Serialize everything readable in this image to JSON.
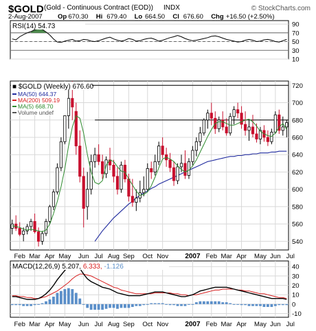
{
  "header": {
    "symbol": "$GOLD",
    "description": "(Gold - Continuous Contract (EOD))",
    "exchange": "INDX",
    "brand": "© StockCharts.com",
    "date": "2-Aug-2007",
    "quote": [
      {
        "label": "Op",
        "value": "670.30"
      },
      {
        "label": "Hi",
        "value": "679.40"
      },
      {
        "label": "Lo",
        "value": "664.50"
      },
      {
        "label": "Cl",
        "value": "676.60"
      },
      {
        "label": "Chg",
        "value": "+16.50 (+2.50%)"
      }
    ]
  },
  "colors": {
    "up": "#000000",
    "down": "#c8102e",
    "ma50": "#1f2a9e",
    "ma200": "#d81e1e",
    "ma5": "#2e8b2e",
    "rsi_fill": "#4e8a4e",
    "macd_hist": "#5b8fc9"
  },
  "chart_data": [
    {
      "type": "line",
      "panel": "rsi",
      "legend": {
        "name": "RSI(14)",
        "value": "54.73"
      },
      "ylim": [
        10,
        98
      ],
      "yticks": [
        10,
        30,
        50,
        70,
        90
      ],
      "reference_lines": [
        30,
        50,
        70
      ],
      "series": [
        {
          "name": "RSI(14)",
          "values": [
            56,
            54,
            61,
            66,
            70,
            73,
            77,
            79,
            78,
            72,
            65,
            56,
            49,
            48,
            51,
            53,
            55,
            51,
            52,
            55,
            54,
            51,
            50,
            52,
            55,
            58,
            60,
            56,
            53,
            51,
            53,
            57,
            55,
            51,
            52,
            55,
            57,
            58,
            55,
            51,
            53,
            56,
            59,
            61,
            64,
            61,
            57,
            54,
            52,
            53,
            55,
            57,
            59,
            62,
            63,
            61,
            58,
            55,
            53,
            51,
            49,
            50,
            53,
            55,
            53,
            50,
            51,
            54,
            55,
            53,
            50,
            49,
            52,
            55
          ]
        }
      ]
    },
    {
      "type": "candlestick",
      "panel": "price",
      "title": "$GOLD (Weekly) 676.60",
      "legend": [
        {
          "name": "MA(50)",
          "value": "644.37"
        },
        {
          "name": "MA(200)",
          "value": "509.19"
        },
        {
          "name": "MA(5)",
          "value": "668.70"
        },
        {
          "name": "Volume undef",
          "value": ""
        }
      ],
      "ylim": [
        530,
        725
      ],
      "yticks": [
        540,
        560,
        580,
        600,
        620,
        640,
        660,
        680,
        700,
        720
      ],
      "reference_lines": [
        720,
        680
      ],
      "x_labels": [
        {
          "label": "Feb",
          "i": 2
        },
        {
          "label": "Mar",
          "i": 6
        },
        {
          "label": "Apr",
          "i": 10
        },
        {
          "label": "May",
          "i": 14
        },
        {
          "label": "Jun",
          "i": 19
        },
        {
          "label": "Jul",
          "i": 23
        },
        {
          "label": "Aug",
          "i": 27
        },
        {
          "label": "Sep",
          "i": 31
        },
        {
          "label": "Oct",
          "i": 36
        },
        {
          "label": "Nov",
          "i": 40
        },
        {
          "label": "2007",
          "i": 48,
          "bold": true
        },
        {
          "label": "Feb",
          "i": 53
        },
        {
          "label": "Mar",
          "i": 57
        },
        {
          "label": "Apr",
          "i": 61
        },
        {
          "label": "May",
          "i": 66
        },
        {
          "label": "Jun",
          "i": 70
        },
        {
          "label": "Jul",
          "i": 74
        }
      ],
      "ohlc": [
        [
          555,
          565,
          548,
          560
        ],
        [
          560,
          570,
          552,
          555
        ],
        [
          555,
          562,
          546,
          548
        ],
        [
          548,
          556,
          540,
          552
        ],
        [
          552,
          560,
          548,
          557
        ],
        [
          557,
          566,
          552,
          563
        ],
        [
          563,
          572,
          549,
          551
        ],
        [
          551,
          556,
          534,
          540
        ],
        [
          540,
          552,
          536,
          549
        ],
        [
          549,
          566,
          546,
          563
        ],
        [
          563,
          582,
          560,
          580
        ],
        [
          580,
          600,
          576,
          597
        ],
        [
          597,
          630,
          594,
          625
        ],
        [
          625,
          660,
          621,
          655
        ],
        [
          655,
          690,
          652,
          685
        ],
        [
          685,
          720,
          670,
          705
        ],
        [
          705,
          725,
          680,
          695
        ],
        [
          690,
          700,
          640,
          650
        ],
        [
          650,
          668,
          608,
          615
        ],
        [
          615,
          625,
          556,
          578
        ],
        [
          580,
          620,
          565,
          600
        ],
        [
          600,
          640,
          594,
          632
        ],
        [
          632,
          648,
          625,
          640
        ],
        [
          640,
          652,
          628,
          632
        ],
        [
          632,
          640,
          612,
          618
        ],
        [
          618,
          638,
          613,
          634
        ],
        [
          634,
          648,
          622,
          628
        ],
        [
          628,
          634,
          608,
          615
        ],
        [
          615,
          625,
          594,
          600
        ],
        [
          600,
          632,
          596,
          628
        ],
        [
          628,
          634,
          608,
          612
        ],
        [
          612,
          618,
          586,
          592
        ],
        [
          592,
          612,
          580,
          585
        ],
        [
          585,
          600,
          575,
          590
        ],
        [
          590,
          610,
          585,
          596
        ],
        [
          596,
          615,
          592,
          600
        ],
        [
          600,
          630,
          598,
          624
        ],
        [
          624,
          632,
          612,
          620
        ],
        [
          620,
          640,
          616,
          632
        ],
        [
          632,
          655,
          628,
          650
        ],
        [
          650,
          660,
          636,
          640
        ],
        [
          640,
          648,
          626,
          634
        ],
        [
          634,
          642,
          620,
          625
        ],
        [
          625,
          632,
          604,
          610
        ],
        [
          610,
          630,
          606,
          626
        ],
        [
          626,
          640,
          620,
          630
        ],
        [
          630,
          645,
          612,
          616
        ],
        [
          616,
          636,
          612,
          632
        ],
        [
          632,
          650,
          628,
          645
        ],
        [
          645,
          660,
          638,
          655
        ],
        [
          655,
          672,
          650,
          665
        ],
        [
          665,
          682,
          662,
          680
        ],
        [
          680,
          692,
          670,
          688
        ],
        [
          688,
          700,
          674,
          682
        ],
        [
          682,
          690,
          664,
          670
        ],
        [
          670,
          684,
          666,
          680
        ],
        [
          680,
          690,
          668,
          672
        ],
        [
          672,
          682,
          662,
          665
        ],
        [
          665,
          688,
          662,
          684
        ],
        [
          684,
          696,
          675,
          692
        ],
        [
          692,
          700,
          682,
          688
        ],
        [
          688,
          696,
          670,
          675
        ],
        [
          675,
          690,
          662,
          668
        ],
        [
          668,
          680,
          656,
          672
        ],
        [
          672,
          686,
          660,
          664
        ],
        [
          664,
          676,
          654,
          658
        ],
        [
          658,
          672,
          652,
          668
        ],
        [
          668,
          674,
          655,
          660
        ],
        [
          660,
          668,
          650,
          655
        ],
        [
          655,
          670,
          652,
          666
        ],
        [
          666,
          690,
          664,
          686
        ],
        [
          686,
          692,
          664,
          668
        ],
        [
          668,
          684,
          662,
          672
        ],
        [
          672,
          680,
          660,
          677
        ]
      ],
      "ma50": [
        null,
        null,
        null,
        null,
        null,
        null,
        null,
        null,
        null,
        null,
        null,
        null,
        null,
        null,
        null,
        null,
        null,
        null,
        null,
        null,
        null,
        null,
        540,
        546,
        552,
        557,
        562,
        567,
        571,
        575,
        579,
        583,
        586,
        590,
        593,
        596,
        598,
        601,
        603,
        606,
        608,
        610,
        612,
        614,
        616,
        618,
        620,
        622,
        624,
        626,
        628,
        630,
        632,
        633,
        634,
        635,
        636,
        637,
        638,
        638,
        639,
        639,
        640,
        640,
        641,
        641,
        642,
        642,
        642,
        643,
        643,
        644,
        644,
        644
      ],
      "ma5": [
        558,
        557,
        556,
        554,
        553,
        554,
        553,
        552,
        551,
        553,
        560,
        572,
        586,
        603,
        624,
        650,
        672,
        685,
        682,
        665,
        640,
        620,
        608,
        606,
        610,
        628,
        634,
        632,
        626,
        621,
        620,
        612,
        605,
        598,
        593,
        594,
        597,
        604,
        614,
        625,
        635,
        637,
        635,
        632,
        627,
        623,
        620,
        622,
        627,
        634,
        643,
        652,
        661,
        669,
        676,
        678,
        678,
        676,
        674,
        674,
        676,
        678,
        680,
        681,
        678,
        673,
        667,
        664,
        662,
        661,
        665,
        672,
        676,
        669
      ]
    },
    {
      "type": "line",
      "panel": "macd",
      "legend": {
        "name": "MACD(12,26,9)",
        "values": [
          "5.207",
          "6.333",
          "-1.126"
        ]
      },
      "ylim": [
        -14,
        46
      ],
      "yticks": [
        -10,
        0,
        10,
        20,
        30,
        40
      ],
      "x_labels": [
        {
          "label": "Feb",
          "i": 2
        },
        {
          "label": "Mar",
          "i": 6
        },
        {
          "label": "Apr",
          "i": 10
        },
        {
          "label": "May",
          "i": 14
        },
        {
          "label": "Jun",
          "i": 19
        },
        {
          "label": "Jul",
          "i": 23
        },
        {
          "label": "Aug",
          "i": 27
        },
        {
          "label": "Sep",
          "i": 31
        },
        {
          "label": "Oct",
          "i": 36
        },
        {
          "label": "Nov",
          "i": 40
        },
        {
          "label": "2007",
          "i": 48,
          "bold": true
        },
        {
          "label": "Feb",
          "i": 53
        },
        {
          "label": "Mar",
          "i": 57
        },
        {
          "label": "Apr",
          "i": 61
        },
        {
          "label": "May",
          "i": 66
        },
        {
          "label": "Jun",
          "i": 70
        },
        {
          "label": "Jul",
          "i": 74
        }
      ],
      "macd": [
        8,
        8,
        7,
        6,
        5,
        5,
        5,
        6,
        8,
        11,
        15,
        20,
        26,
        31,
        36,
        40,
        43,
        42,
        38,
        32,
        27,
        24,
        22,
        20,
        18,
        17,
        16,
        14,
        12,
        11,
        10,
        9,
        9,
        9,
        9,
        10,
        11,
        12,
        13,
        13,
        13,
        12,
        11,
        10,
        9,
        8,
        8,
        9,
        10,
        12,
        14,
        15,
        16,
        17,
        18,
        18,
        18,
        18,
        17,
        16,
        15,
        14,
        13,
        12,
        11,
        10,
        9,
        8,
        7,
        6,
        6,
        6,
        6,
        5
      ],
      "signal": [
        9,
        9,
        8,
        8,
        7,
        7,
        6,
        6,
        7,
        8,
        10,
        12,
        14,
        17,
        20,
        23,
        27,
        30,
        32,
        32,
        31,
        30,
        28,
        26,
        24,
        22,
        20,
        18,
        17,
        15,
        14,
        13,
        12,
        11,
        11,
        11,
        11,
        11,
        12,
        12,
        12,
        12,
        12,
        11,
        11,
        10,
        10,
        9,
        10,
        10,
        11,
        12,
        13,
        14,
        15,
        15,
        16,
        16,
        16,
        16,
        15,
        15,
        14,
        14,
        13,
        12,
        11,
        11,
        10,
        9,
        8,
        7,
        7,
        6
      ],
      "histogram": [
        -1,
        -1,
        -1,
        -2,
        -2,
        -2,
        -1,
        0,
        1,
        3,
        5,
        8,
        12,
        14,
        16,
        17,
        16,
        12,
        6,
        0,
        -4,
        -6,
        -6,
        -6,
        -6,
        -5,
        -4,
        -4,
        -5,
        -4,
        -4,
        -4,
        -3,
        -2,
        -2,
        -1,
        0,
        1,
        1,
        1,
        1,
        0,
        -1,
        -1,
        -2,
        -2,
        -2,
        0,
        0,
        2,
        3,
        3,
        3,
        3,
        3,
        3,
        2,
        2,
        1,
        0,
        0,
        -1,
        -1,
        -2,
        -2,
        -2,
        -2,
        -3,
        -3,
        -3,
        -2,
        -1,
        -1,
        -1
      ]
    }
  ]
}
